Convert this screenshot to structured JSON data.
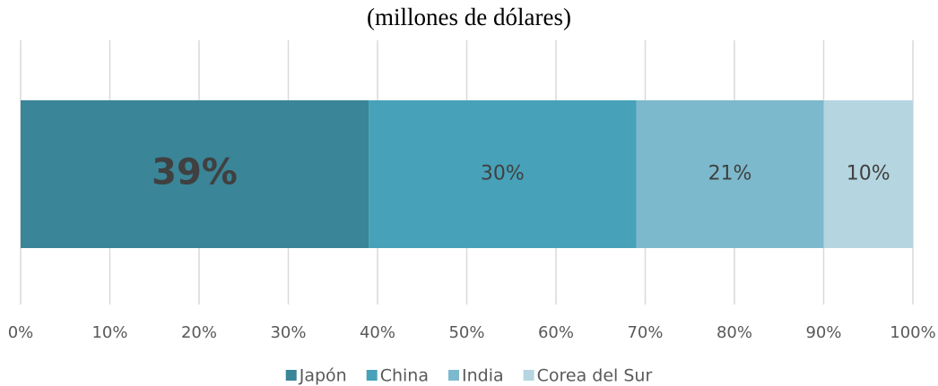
{
  "chart_data": {
    "type": "bar",
    "orientation": "horizontal",
    "stacked": true,
    "title": "(millones de dólares)",
    "series": [
      {
        "name": "Japón",
        "color": "#3a8598",
        "values": [
          39
        ],
        "value_labels": [
          "39%"
        ]
      },
      {
        "name": "China",
        "color": "#47a1b9",
        "values": [
          30
        ],
        "value_labels": [
          "30%"
        ]
      },
      {
        "name": "India",
        "color": "#7db9cd",
        "values": [
          21
        ],
        "value_labels": [
          "21%"
        ]
      },
      {
        "name": "Corea del Sur",
        "color": "#b5d5e0",
        "values": [
          10
        ],
        "value_labels": [
          "10%"
        ]
      }
    ],
    "xlim": [
      0,
      100
    ],
    "xticks": [
      {
        "value": 0,
        "label": "0%"
      },
      {
        "value": 10,
        "label": "10%"
      },
      {
        "value": 20,
        "label": "20%"
      },
      {
        "value": 30,
        "label": "30%"
      },
      {
        "value": 40,
        "label": "40%"
      },
      {
        "value": 50,
        "label": "50%"
      },
      {
        "value": 60,
        "label": "60%"
      },
      {
        "value": 70,
        "label": "70%"
      },
      {
        "value": 80,
        "label": "80%"
      },
      {
        "value": 90,
        "label": "90%"
      },
      {
        "value": 100,
        "label": "100%"
      }
    ],
    "grid": true,
    "legend": "bottom"
  }
}
